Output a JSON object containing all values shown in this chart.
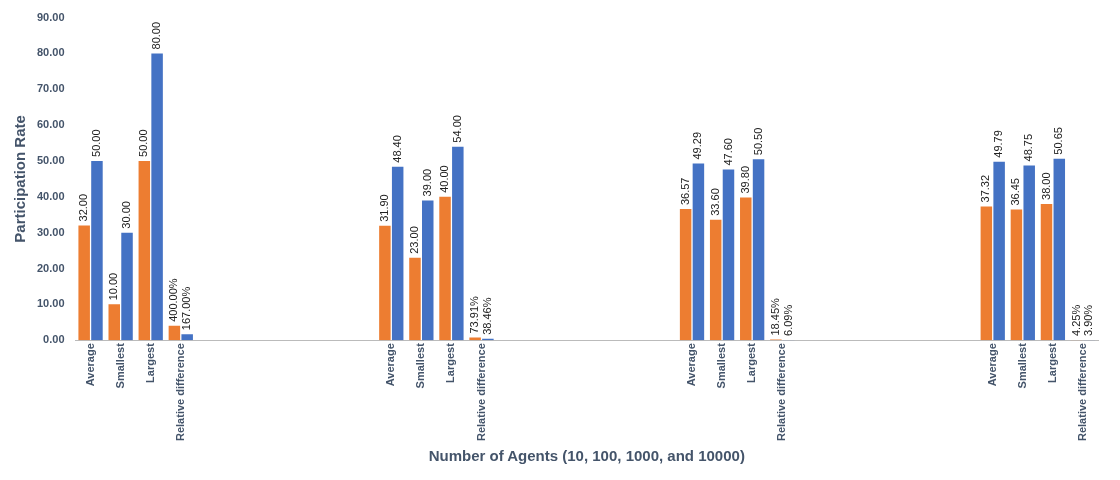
{
  "chart_data": {
    "type": "bar",
    "ylabel": "Participation Rate",
    "xlabel": "Number of Agents (10, 100, 1000, and 10000)",
    "categories": [
      "Average",
      "Smallest",
      "Largest",
      "Relative difference",
      null,
      null,
      null,
      null,
      null,
      null,
      "Average",
      "Smallest",
      "Largest",
      "Relative difference",
      null,
      null,
      null,
      null,
      null,
      null,
      "Average",
      "Smallest",
      "Largest",
      "Relative difference",
      null,
      null,
      null,
      null,
      null,
      null,
      "Average",
      "Smallest",
      "Largest",
      "Relative difference"
    ],
    "series": [
      {
        "color": "#ed7d31",
        "values": [
          32,
          10,
          50,
          4,
          null,
          null,
          null,
          null,
          null,
          null,
          31.9,
          23,
          40,
          0.7391,
          null,
          null,
          null,
          null,
          null,
          null,
          36.57,
          33.6,
          39.8,
          0.1845,
          null,
          null,
          null,
          null,
          null,
          null,
          37.32,
          36.45,
          38,
          0.0425
        ],
        "value_labels": [
          "32.00",
          "10.00",
          "50.00",
          "400.00%",
          null,
          null,
          null,
          null,
          null,
          null,
          "31.90",
          "23.00",
          "40.00",
          "73.91%",
          null,
          null,
          null,
          null,
          null,
          null,
          "36.57",
          "33.60",
          "39.80",
          "18.45%",
          null,
          null,
          null,
          null,
          null,
          null,
          "37.32",
          "36.45",
          "38.00",
          "4.25%"
        ]
      },
      {
        "color": "#4472c4",
        "values": [
          50,
          30,
          80,
          1.67,
          null,
          null,
          null,
          null,
          null,
          null,
          48.4,
          39,
          54,
          0.3846,
          null,
          null,
          null,
          null,
          null,
          null,
          49.29,
          47.6,
          50.5,
          0.0609,
          null,
          null,
          null,
          null,
          null,
          null,
          49.79,
          48.75,
          50.65,
          0.039
        ],
        "value_labels": [
          "50.00",
          "30.00",
          "80.00",
          "167.00%",
          null,
          null,
          null,
          null,
          null,
          null,
          "48.40",
          "39.00",
          "54.00",
          "38.46%",
          null,
          null,
          null,
          null,
          null,
          null,
          "49.29",
          "47.60",
          "50.50",
          "6.09%",
          null,
          null,
          null,
          null,
          null,
          null,
          "49.79",
          "48.75",
          "50.65",
          "3.90%"
        ]
      }
    ],
    "ylim": [
      0,
      90
    ],
    "yticks": [
      {
        "value": 0,
        "label": "0.00"
      },
      {
        "value": 10,
        "label": "10.00"
      },
      {
        "value": 20,
        "label": "20.00"
      },
      {
        "value": 30,
        "label": "30.00"
      },
      {
        "value": 40,
        "label": "40.00"
      },
      {
        "value": 50,
        "label": "50.00"
      },
      {
        "value": 60,
        "label": "60.00"
      },
      {
        "value": 70,
        "label": "70.00"
      },
      {
        "value": 80,
        "label": "80.00"
      },
      {
        "value": 90,
        "label": "90.00"
      }
    ],
    "grid": false,
    "legend": false
  }
}
